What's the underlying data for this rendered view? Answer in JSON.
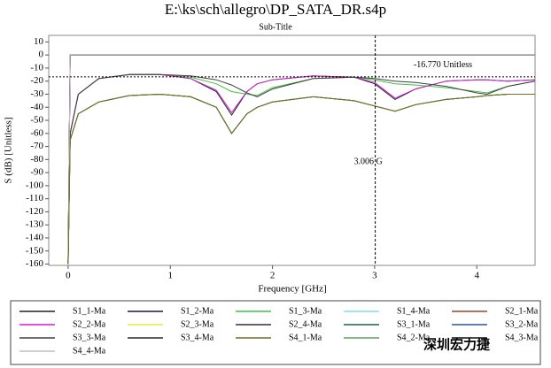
{
  "chart_data": {
    "type": "line",
    "title": "E:\\ks\\sch\\allegro\\DP_SATA_DR.s4p",
    "subtitle": "Sub-Title",
    "x_label": "Frequency [GHz]",
    "y_label": "S (dB) [Unitless]",
    "xlim": [
      -0.19,
      4.57
    ],
    "xticks": [
      0,
      1,
      2,
      3,
      4
    ],
    "ylim": [
      -161,
      15
    ],
    "yticks": [
      10,
      0,
      -10,
      -20,
      -30,
      -40,
      -50,
      -60,
      -70,
      -80,
      -90,
      -100,
      -110,
      -120,
      -130,
      -140,
      -150,
      -160
    ],
    "hmarker": {
      "y": -16.77,
      "label": "-16.770 Unitless"
    },
    "vmarker": {
      "x": 3.006,
      "label": "3.006 G"
    },
    "watermark": "深圳宏力捷",
    "x": [
      0,
      0.02,
      0.1,
      0.3,
      0.6,
      0.9,
      1.2,
      1.45,
      1.6,
      1.75,
      1.85,
      2.0,
      2.4,
      2.8,
      3.0,
      3.2,
      3.4,
      3.7,
      4.0,
      4.1,
      4.3,
      4.57
    ],
    "series": [
      {
        "name": "S1_1-Ma",
        "color": "#202020",
        "values": [
          -160,
          -60,
          -30,
          -18,
          -15,
          -15,
          -18,
          -28,
          -46,
          -28,
          -22,
          -19,
          -16,
          -17,
          -22,
          -34,
          -26,
          -20,
          -19,
          -19,
          -20,
          -19
        ]
      },
      {
        "name": "S1_2-Ma",
        "color": "#1a1a40",
        "values": [
          -160,
          0,
          0,
          0,
          0,
          0,
          0,
          0,
          0,
          0,
          0,
          0,
          0,
          0,
          0,
          0,
          0,
          0,
          0,
          0,
          0,
          0
        ]
      },
      {
        "name": "S1_3-Ma",
        "color": "#40c040",
        "values": [
          -160,
          -60,
          -30,
          -18,
          -15,
          -15,
          -17,
          -22,
          -28,
          -30,
          -31,
          -25,
          -18,
          -17,
          -19,
          -22,
          -23,
          -25,
          -28,
          -29,
          -24,
          -20
        ]
      },
      {
        "name": "S1_4-Ma",
        "color": "#80e0e8",
        "values": [
          -160,
          -65,
          -45,
          -36,
          -31,
          -30,
          -32,
          -40,
          -60,
          -45,
          -40,
          -36,
          -32,
          -35,
          -39,
          -43,
          -38,
          -34,
          -32,
          -31,
          -30,
          -30
        ]
      },
      {
        "name": "S2_1-Ma",
        "color": "#a04020",
        "values": [
          -160,
          0,
          0,
          0,
          0,
          0,
          0,
          0,
          0,
          0,
          0,
          0,
          0,
          0,
          0,
          0,
          0,
          0,
          0,
          0,
          0,
          0
        ]
      },
      {
        "name": "S2_2-Ma",
        "color": "#d020d0",
        "values": [
          -160,
          -60,
          -30,
          -18,
          -15,
          -15,
          -18,
          -27,
          -44,
          -28,
          -22,
          -19,
          -16,
          -17,
          -21,
          -33,
          -26,
          -20,
          -19,
          -19,
          -20,
          -19
        ]
      },
      {
        "name": "S2_3-Ma",
        "color": "#e8e840",
        "values": [
          -160,
          -65,
          -45,
          -36,
          -31,
          -30,
          -32,
          -40,
          -60,
          -45,
          -40,
          -36,
          -32,
          -35,
          -39,
          -43,
          -38,
          -34,
          -32,
          -31,
          -30,
          -30
        ]
      },
      {
        "name": "S2_4-Ma",
        "color": "#303030",
        "values": [
          -160,
          0,
          0,
          0,
          0,
          0,
          0,
          0,
          0,
          0,
          0,
          0,
          0,
          0,
          0,
          0,
          0,
          0,
          0,
          0,
          0,
          0
        ]
      },
      {
        "name": "S3_1-Ma",
        "color": "#206040",
        "values": [
          -160,
          -65,
          -45,
          -36,
          -31,
          -30,
          -32,
          -40,
          -60,
          -45,
          -40,
          -36,
          -32,
          -35,
          -39,
          -43,
          -38,
          -34,
          -32,
          -31,
          -30,
          -30
        ]
      },
      {
        "name": "S3_2-Ma",
        "color": "#3050a0",
        "values": [
          -160,
          -65,
          -45,
          -36,
          -31,
          -30,
          -32,
          -40,
          -60,
          -45,
          -40,
          -36,
          -32,
          -35,
          -39,
          -43,
          -38,
          -34,
          -32,
          -31,
          -30,
          -30
        ]
      },
      {
        "name": "S3_3-Ma",
        "color": "#404040",
        "values": [
          -160,
          -60,
          -30,
          -18,
          -15,
          -15,
          -16,
          -19,
          -23,
          -29,
          -32,
          -26,
          -18,
          -17,
          -18,
          -20,
          -21,
          -24,
          -29,
          -30,
          -24,
          -20
        ]
      },
      {
        "name": "S3_4-Ma",
        "color": "#282828",
        "values": [
          -160,
          0,
          0,
          0,
          0,
          0,
          0,
          0,
          0,
          0,
          0,
          0,
          0,
          0,
          0,
          0,
          0,
          0,
          0,
          0,
          0,
          0
        ]
      },
      {
        "name": "S4_1-Ma",
        "color": "#707020",
        "values": [
          -160,
          -65,
          -45,
          -36,
          -31,
          -30,
          -32,
          -40,
          -60,
          -45,
          -40,
          -36,
          -32,
          -35,
          -39,
          -43,
          -38,
          -34,
          -32,
          -31,
          -30,
          -30
        ]
      },
      {
        "name": "S4_2-Ma",
        "color": "#60a060",
        "values": [
          -160,
          -65,
          -45,
          -36,
          -31,
          -30,
          -32,
          -40,
          -60,
          -45,
          -40,
          -36,
          -32,
          -35,
          -39,
          -43,
          -38,
          -34,
          -32,
          -31,
          -30,
          -30
        ]
      },
      {
        "name": "S4_3-Ma",
        "color": "#101010",
        "values": [
          -160,
          0,
          0,
          0,
          0,
          0,
          0,
          0,
          0,
          0,
          0,
          0,
          0,
          0,
          0,
          0,
          0,
          0,
          0,
          0,
          0,
          0
        ]
      },
      {
        "name": "S4_4-Ma",
        "color": "#c8bcc8",
        "values": [
          -160,
          0,
          0,
          0,
          0,
          0,
          0,
          0,
          0,
          0,
          0,
          0,
          0,
          0,
          0,
          0,
          0,
          0,
          0,
          0,
          0,
          0
        ]
      }
    ]
  }
}
